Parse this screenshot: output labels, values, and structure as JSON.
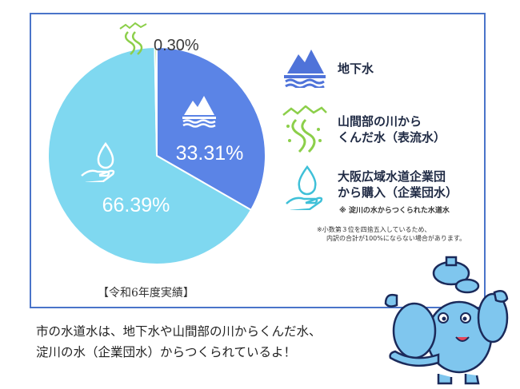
{
  "chart_data": {
    "type": "pie",
    "slices": [
      {
        "name": "地下水",
        "value": 33.31,
        "label": "33.31%",
        "color": "#5b84e6"
      },
      {
        "name": "大阪広域水道企業団から購入（企業団水）",
        "value": 66.39,
        "label": "66.39%",
        "color": "#7fd8f0"
      },
      {
        "name": "山間部の川からくんだ水（表流水）",
        "value": 0.3,
        "label": "0.30%",
        "color": "#9ed86a"
      }
    ],
    "period": "【令和6年度実績】"
  },
  "legend": {
    "items": [
      {
        "lines": [
          "地下水"
        ],
        "icon": "groundwater-icon",
        "color": "#5b84e6"
      },
      {
        "lines": [
          "山間部の川から",
          "くんだ水（表流水）"
        ],
        "icon": "river-icon",
        "color": "#8ccf4a"
      },
      {
        "lines": [
          "大阪広域水道企業団",
          "から購入（企業団水）"
        ],
        "icon": "hand-droplet-icon",
        "color": "#3fc0d8"
      }
    ],
    "note": "※ 淀川の水からつくられた水道水",
    "footnote": [
      "※小数第３位を四捨五入しているため、",
      "内訳の合計が100%にならない場合があります。"
    ]
  },
  "caption": [
    "市の水道水は、地下水や山間部の川からくんだ水、",
    "淀川の水（企業団水）からつくられているよ！"
  ],
  "mascot": {
    "icon": "elephant-mascot-icon"
  }
}
